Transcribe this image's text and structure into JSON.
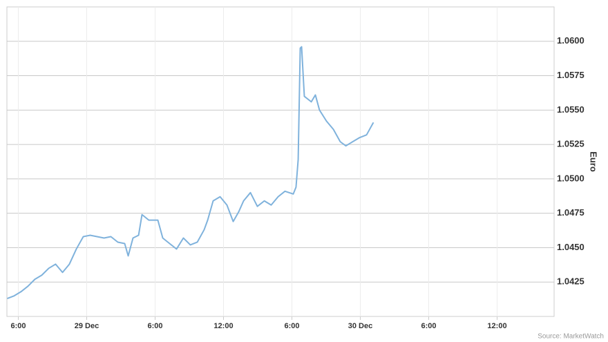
{
  "chart_data": {
    "type": "line",
    "y_axis_label": "Euro",
    "source": "Source: MarketWatch",
    "x": [
      17.03,
      17.64,
      18.24,
      18.85,
      19.45,
      20.06,
      20.67,
      21.27,
      21.88,
      22.48,
      23.09,
      23.7,
      24.3,
      24.91,
      25.52,
      26.12,
      26.73,
      27.33,
      27.64,
      28.06,
      28.55,
      28.85,
      29.45,
      30.24,
      30.67,
      31.27,
      31.88,
      32.48,
      33.09,
      33.7,
      34.3,
      34.61,
      35.09,
      35.7,
      36.3,
      36.85,
      37.33,
      37.76,
      38.36,
      38.97,
      39.58,
      40.18,
      40.79,
      41.39,
      42.12,
      42.36,
      42.55,
      42.73,
      42.85,
      43.09,
      43.7,
      44.06,
      44.42,
      45.03,
      45.64,
      46.24,
      46.73,
      47.33,
      47.94,
      48.55,
      49.15
    ],
    "series": [
      {
        "color": "#7fb2dc",
        "values": [
          1.0413,
          1.0415,
          1.0418,
          1.0422,
          1.0427,
          1.043,
          1.0435,
          1.0438,
          1.0432,
          1.0438,
          1.0449,
          1.0458,
          1.0459,
          1.0458,
          1.0457,
          1.0458,
          1.0454,
          1.0453,
          1.0444,
          1.0457,
          1.0459,
          1.0474,
          1.047,
          1.047,
          1.0457,
          1.0453,
          1.0449,
          1.0457,
          1.0452,
          1.0454,
          1.0463,
          1.047,
          1.0484,
          1.0487,
          1.0481,
          1.0469,
          1.0476,
          1.0484,
          1.049,
          1.048,
          1.0484,
          1.0481,
          1.0487,
          1.0491,
          1.0489,
          1.0494,
          1.0514,
          1.0595,
          1.0596,
          1.056,
          1.0556,
          1.0561,
          1.055,
          1.0542,
          1.0536,
          1.0527,
          1.0524,
          1.0527,
          1.053,
          1.0532,
          1.0541
        ]
      }
    ],
    "xlim": [
      17,
      65
    ],
    "xticks": [
      {
        "value": 18,
        "label": "6:00"
      },
      {
        "value": 24,
        "label": "29 Dec"
      },
      {
        "value": 30,
        "label": "6:00"
      },
      {
        "value": 36,
        "label": "12:00"
      },
      {
        "value": 42,
        "label": "6:00"
      },
      {
        "value": 48,
        "label": "30 Dec"
      },
      {
        "value": 54,
        "label": "6:00"
      },
      {
        "value": 60,
        "label": "12:00"
      }
    ],
    "ylim": [
      1.04,
      1.0625
    ],
    "yticks": [
      {
        "value": 1.0425,
        "label": "1.0425"
      },
      {
        "value": 1.045,
        "label": "1.0450"
      },
      {
        "value": 1.0475,
        "label": "1.0475"
      },
      {
        "value": 1.05,
        "label": "1.0500"
      },
      {
        "value": 1.0525,
        "label": "1.0525"
      },
      {
        "value": 1.055,
        "label": "1.0550"
      },
      {
        "value": 1.0575,
        "label": "1.0575"
      },
      {
        "value": 1.06,
        "label": "1.0600"
      }
    ],
    "grid": true
  }
}
